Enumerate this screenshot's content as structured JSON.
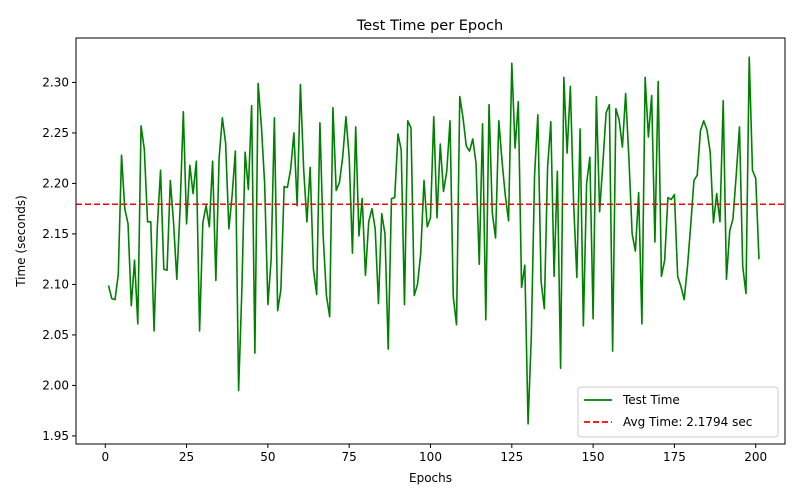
{
  "chart_data": {
    "type": "line",
    "title": "Test Time per Epoch",
    "xlabel": "Epochs",
    "ylabel": "Time (seconds)",
    "xlim": [
      -9,
      209
    ],
    "ylim": [
      1.942,
      2.344
    ],
    "xticks": [
      0,
      25,
      50,
      75,
      100,
      125,
      150,
      175,
      200
    ],
    "yticks": [
      1.95,
      2.0,
      2.05,
      2.1,
      2.15,
      2.2,
      2.25,
      2.3
    ],
    "ytick_labels": [
      "1.95",
      "2.00",
      "2.05",
      "2.10",
      "2.15",
      "2.20",
      "2.25",
      "2.30"
    ],
    "grid": false,
    "legend_position": "lower-right",
    "series": [
      {
        "name": "Test Time",
        "color": "#008000",
        "style": "solid",
        "x_start": 1,
        "x_step": 1,
        "values": [
          2.099,
          2.086,
          2.085,
          2.11,
          2.228,
          2.175,
          2.16,
          2.079,
          2.124,
          2.061,
          2.257,
          2.234,
          2.162,
          2.162,
          2.054,
          2.157,
          2.213,
          2.115,
          2.114,
          2.203,
          2.161,
          2.105,
          2.175,
          2.271,
          2.16,
          2.218,
          2.19,
          2.222,
          2.054,
          2.161,
          2.178,
          2.157,
          2.222,
          2.104,
          2.225,
          2.265,
          2.24,
          2.155,
          2.188,
          2.232,
          1.995,
          2.095,
          2.231,
          2.194,
          2.277,
          2.032,
          2.299,
          2.257,
          2.2,
          2.08,
          2.125,
          2.265,
          2.074,
          2.095,
          2.197,
          2.196,
          2.214,
          2.25,
          2.178,
          2.298,
          2.214,
          2.162,
          2.216,
          2.115,
          2.09,
          2.26,
          2.148,
          2.089,
          2.068,
          2.275,
          2.193,
          2.201,
          2.226,
          2.266,
          2.226,
          2.131,
          2.256,
          2.148,
          2.185,
          2.109,
          2.162,
          2.175,
          2.155,
          2.081,
          2.17,
          2.15,
          2.036,
          2.185,
          2.186,
          2.249,
          2.233,
          2.08,
          2.262,
          2.255,
          2.089,
          2.1,
          2.131,
          2.203,
          2.157,
          2.166,
          2.266,
          2.166,
          2.239,
          2.192,
          2.212,
          2.262,
          2.088,
          2.06,
          2.286,
          2.265,
          2.237,
          2.232,
          2.244,
          2.22,
          2.12,
          2.259,
          2.065,
          2.278,
          2.171,
          2.146,
          2.262,
          2.222,
          2.188,
          2.163,
          2.319,
          2.235,
          2.281,
          2.097,
          2.119,
          1.962,
          2.049,
          2.208,
          2.268,
          2.103,
          2.076,
          2.216,
          2.261,
          2.108,
          2.212,
          2.017,
          2.305,
          2.23,
          2.296,
          2.181,
          2.107,
          2.254,
          2.059,
          2.2,
          2.226,
          2.066,
          2.286,
          2.172,
          2.22,
          2.27,
          2.278,
          2.034,
          2.274,
          2.263,
          2.236,
          2.289,
          2.225,
          2.15,
          2.133,
          2.191,
          2.061,
          2.305,
          2.246,
          2.287,
          2.142,
          2.301,
          2.108,
          2.124,
          2.186,
          2.184,
          2.189,
          2.108,
          2.098,
          2.085,
          2.117,
          2.158,
          2.203,
          2.208,
          2.252,
          2.262,
          2.253,
          2.231,
          2.161,
          2.19,
          2.162,
          2.282,
          2.105,
          2.153,
          2.165,
          2.208,
          2.256,
          2.118,
          2.091,
          2.325,
          2.213,
          2.205,
          2.125
        ]
      },
      {
        "name": "Avg Time: 2.1794 sec",
        "color": "#ff0000",
        "style": "dashed",
        "constant": 2.1794
      }
    ]
  }
}
